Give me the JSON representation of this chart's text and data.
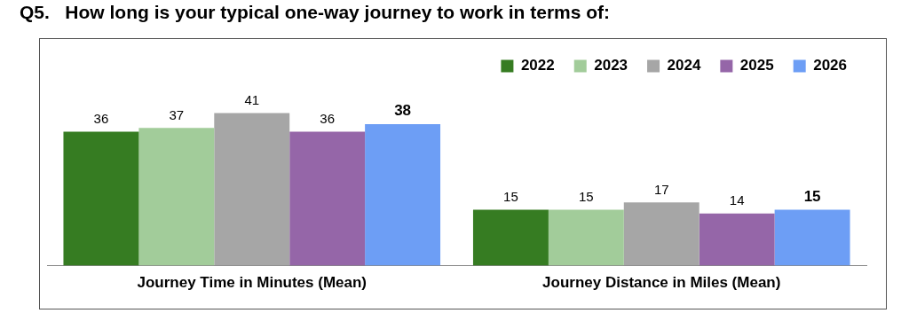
{
  "chart_data": {
    "type": "bar",
    "title": "Q5.   How long is your typical one-way journey to work in terms of:",
    "categories": [
      "Journey Time in Minutes (Mean)",
      "Journey Distance in Miles (Mean)"
    ],
    "series": [
      {
        "name": "2022",
        "color": "#367c22",
        "values": [
          36,
          15
        ]
      },
      {
        "name": "2023",
        "color": "#a2cc9a",
        "values": [
          37,
          15
        ]
      },
      {
        "name": "2024",
        "color": "#a6a6a6",
        "values": [
          41,
          17
        ]
      },
      {
        "name": "2025",
        "color": "#9566a8",
        "values": [
          36,
          14
        ]
      },
      {
        "name": "2026",
        "color": "#6d9ef5",
        "values": [
          38,
          15
        ]
      }
    ],
    "data_labels": true,
    "legend": "top right",
    "grid": false
  }
}
